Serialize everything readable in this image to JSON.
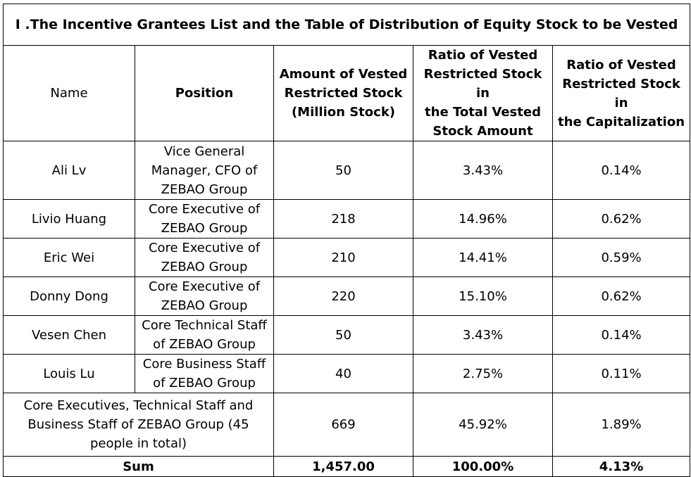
{
  "title": "I .The Incentive Grantees List and the Table of Distribution of Equity Stock to be Vested",
  "headers": {
    "name": "Name",
    "position": "Position",
    "amount": "Amount of Vested\nRestricted Stock\n(Million Stock)",
    "ratio_total": "Ratio of Vested\nRestricted Stock in\nthe Total Vested\nStock Amount",
    "ratio_cap": "Ratio of Vested\nRestricted Stock in\nthe Capitalization"
  },
  "rows": [
    {
      "name": "Ali Lv",
      "position": "Vice General\nManager, CFO of\nZEBAO Group",
      "amount": "50",
      "ratio_total": "3.43%",
      "ratio_cap": "0.14%"
    },
    {
      "name": "Livio Huang",
      "position": "Core Executive of\nZEBAO Group",
      "amount": "218",
      "ratio_total": "14.96%",
      "ratio_cap": "0.62%"
    },
    {
      "name": "Eric Wei",
      "position": "Core Executive of\nZEBAO Group",
      "amount": "210",
      "ratio_total": "14.41%",
      "ratio_cap": "0.59%"
    },
    {
      "name": "Donny Dong",
      "position": "Core Executive of\nZEBAO Group",
      "amount": "220",
      "ratio_total": "15.10%",
      "ratio_cap": "0.62%"
    },
    {
      "name": "Vesen Chen",
      "position": "Core Technical Staff\nof ZEBAO Group",
      "amount": "50",
      "ratio_total": "3.43%",
      "ratio_cap": "0.14%"
    },
    {
      "name": "Louis Lu",
      "position": "Core Business Staff\nof ZEBAO Group",
      "amount": "40",
      "ratio_total": "2.75%",
      "ratio_cap": "0.11%"
    }
  ],
  "group_row": {
    "label": "Core Executives, Technical Staff and\nBusiness Staff of ZEBAO   Group (45\npeople in   total)",
    "amount": "669",
    "ratio_total": "45.92%",
    "ratio_cap": "1.89%"
  },
  "sum_row": {
    "label": "Sum",
    "amount": "1,457.00",
    "ratio_total": "100.00%",
    "ratio_cap": "4.13%"
  }
}
